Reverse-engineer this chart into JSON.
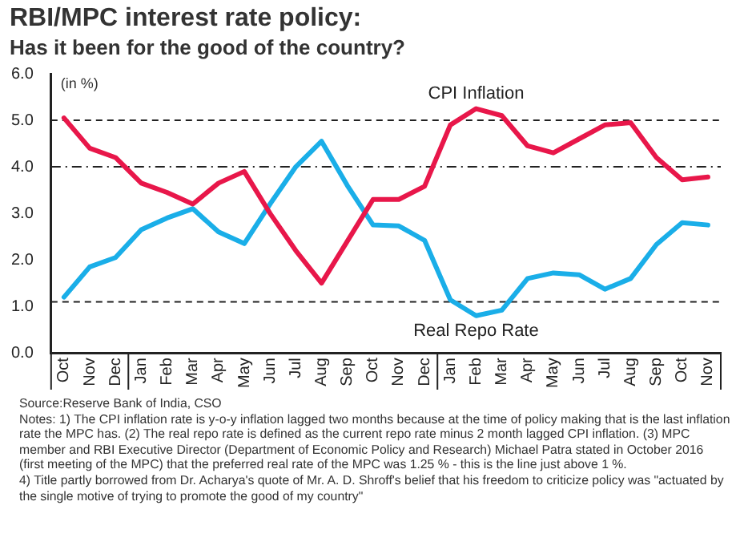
{
  "chart_data": {
    "type": "line",
    "title": "RBI/MPC interest rate policy:",
    "subtitle": "Has it been for the good of the country?",
    "ylabel": "(in %)",
    "categories": [
      "Oct",
      "Nov",
      "Dec",
      "Jan",
      "Feb",
      "Mar",
      "Apr",
      "May",
      "Jun",
      "Jul",
      "Aug",
      "Sep",
      "Oct",
      "Nov",
      "Dec",
      "Jan",
      "Feb",
      "Mar",
      "Apr",
      "May",
      "Jun",
      "Jul",
      "Aug",
      "Sep",
      "Oct",
      "Nov"
    ],
    "series": [
      {
        "name": "CPI Inflation",
        "color": "#e8174a",
        "values": [
          5.05,
          4.4,
          4.2,
          3.65,
          3.45,
          3.2,
          3.65,
          3.9,
          3.0,
          2.2,
          1.5,
          2.4,
          3.3,
          3.3,
          3.58,
          4.9,
          5.25,
          5.1,
          4.45,
          4.3,
          4.6,
          4.9,
          4.95,
          4.2,
          3.72,
          3.78
        ]
      },
      {
        "name": "Real Repo Rate",
        "color": "#1aaee8",
        "values": [
          1.2,
          1.85,
          2.05,
          2.65,
          2.9,
          3.1,
          2.6,
          2.35,
          3.2,
          4.0,
          4.55,
          3.6,
          2.75,
          2.73,
          2.42,
          1.14,
          0.8,
          0.92,
          1.6,
          1.72,
          1.68,
          1.37,
          1.6,
          2.33,
          2.8,
          2.75
        ]
      }
    ],
    "ylim": [
      0,
      6
    ],
    "yticks": [
      {
        "value": 0,
        "label": "0.0"
      },
      {
        "value": 1,
        "label": "1.0"
      },
      {
        "value": 2,
        "label": "2.0"
      },
      {
        "value": 3,
        "label": "3.0"
      },
      {
        "value": 4,
        "label": "4.0"
      },
      {
        "value": 5,
        "label": "5.0"
      },
      {
        "value": 6,
        "label": "6.0"
      }
    ],
    "ref_lines": [
      {
        "axis": "y",
        "value": 5,
        "line_style": "dashed"
      },
      {
        "axis": "y",
        "value": 4,
        "line_style": "dashdot"
      },
      {
        "axis": "y",
        "value": 1.1,
        "line_style": "dashed"
      }
    ],
    "grid": false,
    "legend": false,
    "marker": "none",
    "line_style": "solid",
    "annotations": [
      "Source:Reserve Bank of India, CSO",
      "Notes: 1) The CPI inflation rate is y-o-y inflation lagged two months because at the time of policy making that is the last inflation rate the MPC has. (2) The real repo rate is defined as the current repo rate minus 2 month lagged CPI inflation. (3) MPC member and RBI Executive Director (Department of Economic Policy and Research) Michael Patra stated in October 2016 (first meeting of the MPC) that the preferred real rate of the MPC was 1.25 % - this is the line just above 1 %.",
      "4) Title partly borrowed from Dr. Acharya's quote of Mr. A. D. Shroff's belief that his freedom to criticize policy was \"actuated by the single motive of trying to promote the good of my country\""
    ]
  }
}
